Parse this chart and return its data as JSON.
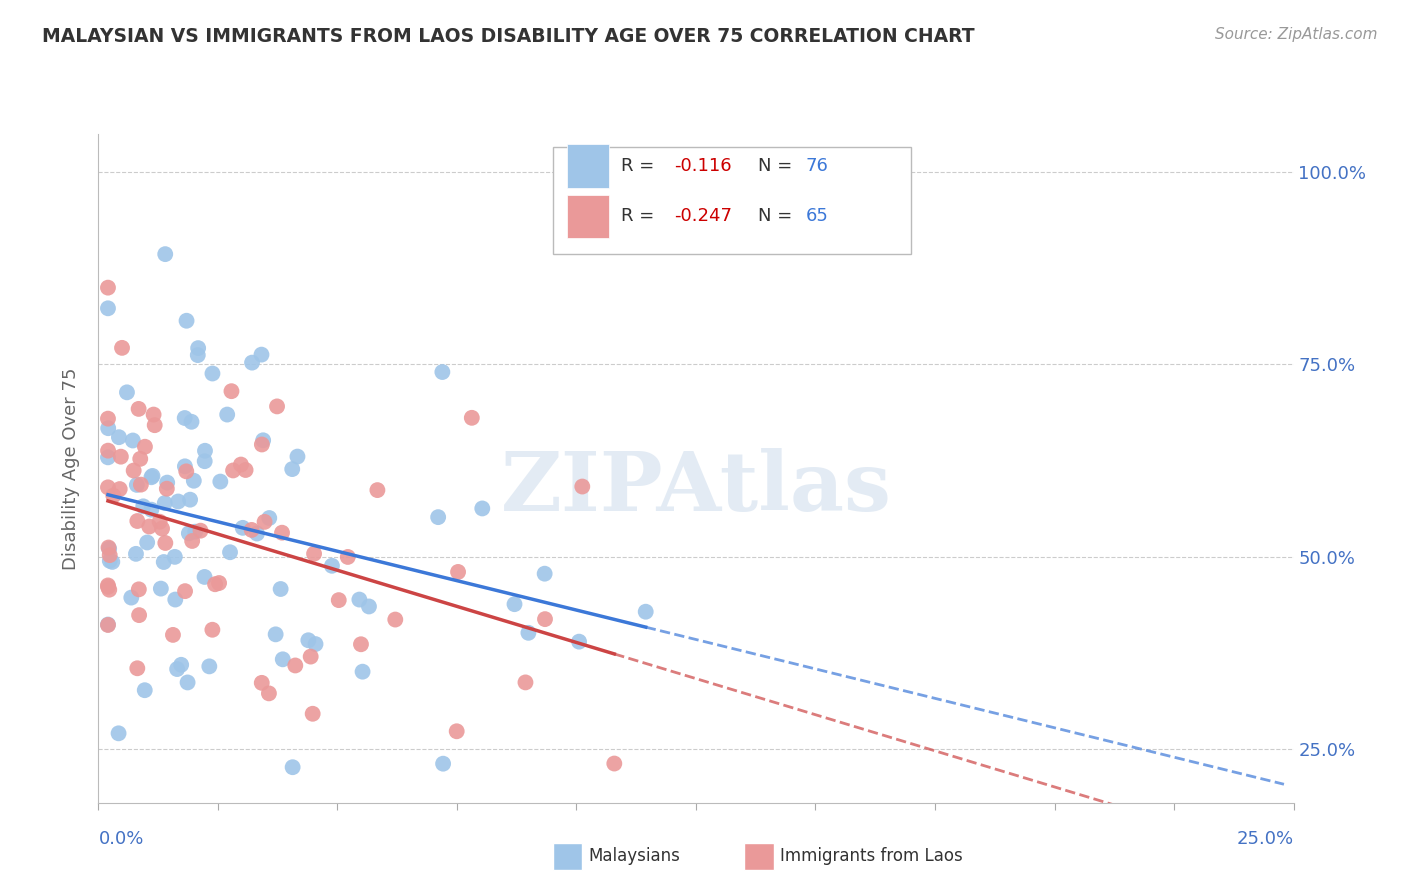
{
  "title": "MALAYSIAN VS IMMIGRANTS FROM LAOS DISABILITY AGE OVER 75 CORRELATION CHART",
  "source_text": "Source: ZipAtlas.com",
  "ylabel": "Disability Age Over 75",
  "watermark": "ZIPAtlas",
  "xlim": [
    0.0,
    0.25
  ],
  "ylim": [
    0.18,
    1.05
  ],
  "y_ticks": [
    0.25,
    0.5,
    0.75,
    1.0
  ],
  "y_tick_labels": [
    "25.0%",
    "50.0%",
    "75.0%",
    "100.0%"
  ],
  "x_tick_labels": [
    "0.0%",
    "25.0%"
  ],
  "series1_color": "#9fc5e8",
  "series2_color": "#ea9999",
  "series1_label": "Malaysians",
  "series2_label": "Immigrants from Laos",
  "R1": -0.116,
  "N1": 76,
  "R2": -0.247,
  "N2": 65,
  "trend1_color": "#3c78d8",
  "trend2_color": "#cc4444",
  "trend2_dash_color": "#cc4444",
  "background_color": "#ffffff",
  "title_color": "#333333",
  "axis_label_color": "#666666",
  "tick_label_color": "#4472c4",
  "grid_color": "#cccccc",
  "legend_R_color": "#cc0000",
  "legend_N_color": "#3c78d8"
}
